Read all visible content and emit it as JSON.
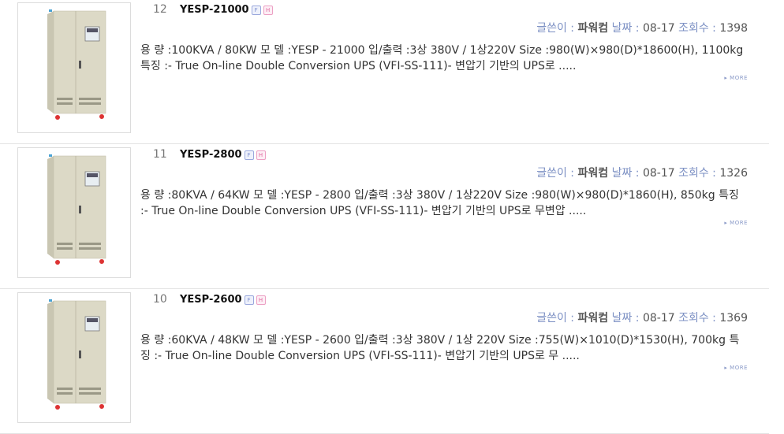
{
  "items": [
    {
      "num": "12",
      "title": "YESP-21000",
      "badge_f": "F",
      "badge_h": "H",
      "writer_label": "글쓴이 :",
      "writer": "파워컴",
      "date_label": "날짜 :",
      "date": "08-17",
      "views_label": "조회수 :",
      "views": "1398",
      "desc": "용 량 :100KVA / 80KW 모 델 :YESP - 21000 입/출력 :3상 380V / 1상220V Size :980(W)×980(D)*18600(H), 1100kg 특징 :- True On-line Double Conversion UPS (VFI-SS-111)- 변압기 기반의 UPS로 .....",
      "more": "MORE"
    },
    {
      "num": "11",
      "title": "YESP-2800",
      "badge_f": "F",
      "badge_h": "H",
      "writer_label": "글쓴이 :",
      "writer": "파워컴",
      "date_label": "날짜 :",
      "date": "08-17",
      "views_label": "조회수 :",
      "views": "1326",
      "desc": "용 량 :80KVA / 64KW 모 델 :YESP - 2800 입/출력 :3상 380V / 1상220V Size :980(W)×980(D)*1860(H), 850kg 특징 :- True On-line Double Conversion UPS (VFI-SS-111)- 변압기 기반의 UPS로 무변압 .....",
      "more": "MORE"
    },
    {
      "num": "10",
      "title": "YESP-2600",
      "badge_f": "F",
      "badge_h": "H",
      "writer_label": "글쓴이 :",
      "writer": "파워컴",
      "date_label": "날짜 :",
      "date": "08-17",
      "views_label": "조회수 :",
      "views": "1369",
      "desc": "용 량 :60KVA / 48KW 모 델 :YESP - 2600 입/출력 :3상 380V / 1상 220V Size :755(W)×1010(D)*1530(H), 700kg 특징 :- True On-line Double Conversion UPS (VFI-SS-111)- 변압기 기반의 UPS로 무 .....",
      "more": "MORE"
    }
  ]
}
